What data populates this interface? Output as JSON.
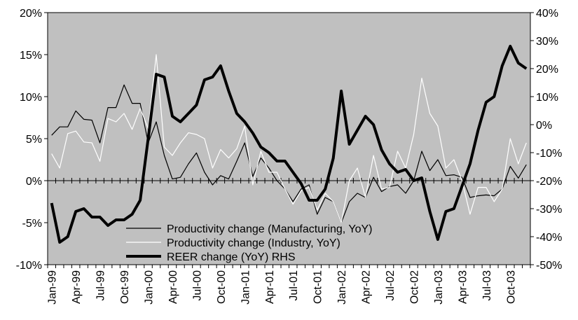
{
  "chart_data": {
    "type": "line",
    "categories": [
      "Jan-99",
      null,
      null,
      "Apr-99",
      null,
      null,
      "Jul-99",
      null,
      null,
      "Oct-99",
      null,
      null,
      "Jan-00",
      null,
      null,
      "Apr-00",
      null,
      null,
      "Jul-00",
      null,
      null,
      "Oct-00",
      null,
      null,
      "Jan-01",
      null,
      null,
      "Apr-01",
      null,
      null,
      "Jul-01",
      null,
      null,
      "Oct-01",
      null,
      null,
      "Jan-02",
      null,
      null,
      "Apr-02",
      null,
      null,
      "Jul-02",
      null,
      null,
      "Oct-02",
      null,
      null,
      "Jan-03",
      null,
      null,
      "Apr-03",
      null,
      null,
      "Jul-03",
      null,
      null,
      "Oct-03",
      null,
      null
    ],
    "series": [
      {
        "name": "Productivity change (Manufacturing, YoY)",
        "color": "#000000",
        "axis": "y",
        "values": [
          5.4,
          6.4,
          6.4,
          8.3,
          7.3,
          7.2,
          4.5,
          8.7,
          8.7,
          11.4,
          9.2,
          9.2,
          4.5,
          7.0,
          3.0,
          0.2,
          0.4,
          2.0,
          3.3,
          1.0,
          -0.5,
          0.6,
          0.2,
          2.3,
          4.5,
          0.5,
          2.7,
          1.5,
          0.0,
          -1.0,
          -2.5,
          -1.0,
          -0.5,
          -4.0,
          -2.0,
          -2.5,
          -5.0,
          -2.5,
          -1.5,
          -2.0,
          0.4,
          -1.3,
          -0.7,
          -0.5,
          -1.5,
          0.0,
          3.5,
          1.2,
          2.5,
          0.6,
          0.7,
          0.4,
          -2.0,
          -1.8,
          -1.7,
          -1.8,
          -1.0,
          1.7,
          0.3,
          1.9
        ]
      },
      {
        "name": "Productivity change (Industry, YoY)",
        "color": "#ffffff",
        "axis": "y",
        "values": [
          3.2,
          1.5,
          5.6,
          5.9,
          4.6,
          4.5,
          2.3,
          7.4,
          7.0,
          8.0,
          6.1,
          8.6,
          6.2,
          15.0,
          4.0,
          3.0,
          4.5,
          5.7,
          5.5,
          5.0,
          1.5,
          3.7,
          2.7,
          3.8,
          6.5,
          -0.5,
          3.5,
          1.0,
          1.0,
          -1.0,
          -2.8,
          -1.2,
          -0.8,
          -3.5,
          -1.5,
          -2.5,
          -5.0,
          0.0,
          1.5,
          -2.0,
          3.0,
          -1.0,
          -0.8,
          3.5,
          1.5,
          5.5,
          12.2,
          8.0,
          6.5,
          1.5,
          2.5,
          0.0,
          -4.0,
          -0.8,
          -0.8,
          -2.5,
          -1.0,
          5.0,
          2.0,
          4.5
        ]
      },
      {
        "name": "REER change (YoY) RHS",
        "color": "#000000",
        "axis": "y2",
        "values": [
          -28,
          -42,
          -40,
          -31,
          -30,
          -33,
          -33,
          -36,
          -34,
          -34,
          -32,
          -27,
          -5,
          18,
          17,
          3,
          1,
          4,
          7,
          16,
          17,
          21,
          12,
          4,
          1,
          -3,
          -8,
          -10,
          -13,
          -13,
          -17,
          -21,
          -27,
          -27,
          -23,
          -12,
          12,
          -7,
          -2,
          3,
          0,
          -9,
          -14,
          -17,
          -16,
          -20,
          -19,
          -31,
          -41,
          -31,
          -30,
          -22,
          -14,
          -2,
          8,
          10,
          21,
          28,
          22,
          20
        ]
      }
    ],
    "ylim": [
      -10,
      20
    ],
    "yticks": [
      {
        "value": -10,
        "label": "-10%"
      },
      {
        "value": -5,
        "label": "-5%"
      },
      {
        "value": 0,
        "label": "0%"
      },
      {
        "value": 5,
        "label": "5%"
      },
      {
        "value": 10,
        "label": "10%"
      },
      {
        "value": 15,
        "label": "15%"
      },
      {
        "value": 20,
        "label": "20%"
      }
    ],
    "y2lim": [
      -50,
      40
    ],
    "y2ticks": [
      {
        "value": -50,
        "label": "-50%"
      },
      {
        "value": -40,
        "label": "-40%"
      },
      {
        "value": -30,
        "label": "-30%"
      },
      {
        "value": -20,
        "label": "-20%"
      },
      {
        "value": -10,
        "label": "-10%"
      },
      {
        "value": 0,
        "label": "0%"
      },
      {
        "value": 10,
        "label": "10%"
      },
      {
        "value": 20,
        "label": "20%"
      },
      {
        "value": 30,
        "label": "30%"
      },
      {
        "value": 40,
        "label": "40%"
      }
    ],
    "background": "#c0c0c0",
    "legend": "bottom-left",
    "grid": false
  }
}
